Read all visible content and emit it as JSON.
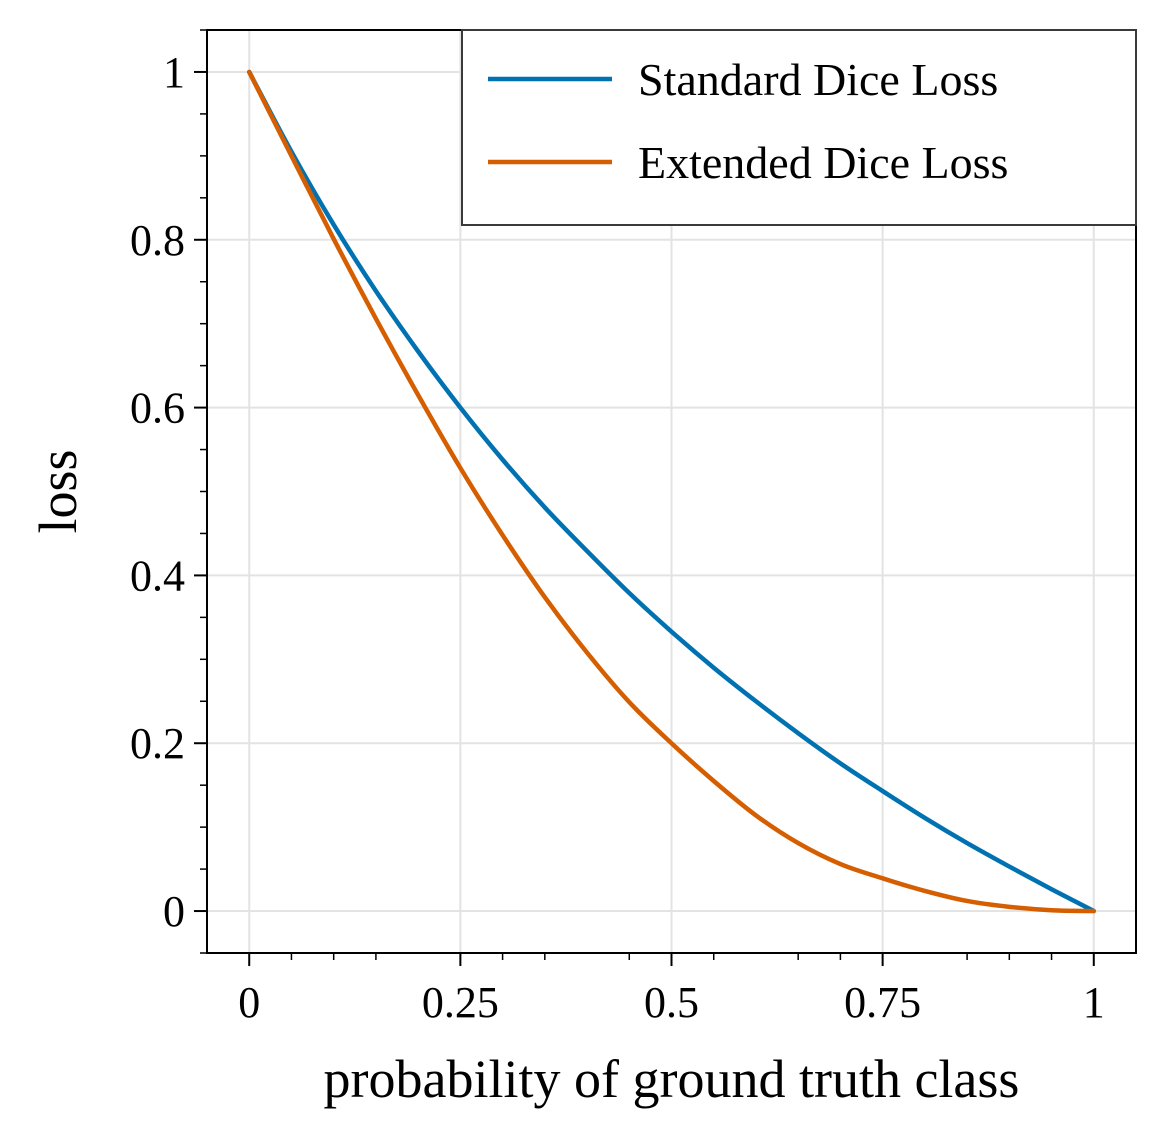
{
  "chart_data": {
    "type": "line",
    "xlabel": "probability of ground truth class",
    "ylabel": "loss",
    "xlim": [
      -0.05,
      1.05
    ],
    "ylim": [
      -0.05,
      1.05
    ],
    "grid": true,
    "legend_position": "top-right",
    "x_ticks": [
      {
        "value": 0,
        "label": "0"
      },
      {
        "value": 0.25,
        "label": "0.25"
      },
      {
        "value": 0.5,
        "label": "0.5"
      },
      {
        "value": 0.75,
        "label": "0.75"
      },
      {
        "value": 1,
        "label": "1"
      }
    ],
    "y_ticks": [
      {
        "value": 0,
        "label": "0"
      },
      {
        "value": 0.2,
        "label": "0.2"
      },
      {
        "value": 0.4,
        "label": "0.4"
      },
      {
        "value": 0.6,
        "label": "0.6"
      },
      {
        "value": 0.8,
        "label": "0.8"
      },
      {
        "value": 1,
        "label": "1"
      }
    ],
    "x": [
      0,
      0.05,
      0.1,
      0.15,
      0.2,
      0.25,
      0.3,
      0.35,
      0.4,
      0.45,
      0.5,
      0.55,
      0.6,
      0.65,
      0.7,
      0.75,
      0.8,
      0.85,
      0.9,
      0.95,
      1
    ],
    "series": [
      {
        "name": "Standard Dice Loss",
        "color": "#0072b2",
        "values": [
          1.0,
          0.905,
          0.818,
          0.739,
          0.667,
          0.6,
          0.538,
          0.481,
          0.429,
          0.379,
          0.333,
          0.29,
          0.25,
          0.212,
          0.176,
          0.143,
          0.111,
          0.081,
          0.053,
          0.026,
          0.0
        ]
      },
      {
        "name": "Extended Dice Loss",
        "color": "#d55e00",
        "values": [
          1.0,
          0.9,
          0.801,
          0.706,
          0.615,
          0.528,
          0.448,
          0.374,
          0.308,
          0.249,
          0.2,
          0.155,
          0.114,
          0.081,
          0.056,
          0.039,
          0.024,
          0.012,
          0.005,
          0.001,
          0.0
        ]
      }
    ]
  }
}
